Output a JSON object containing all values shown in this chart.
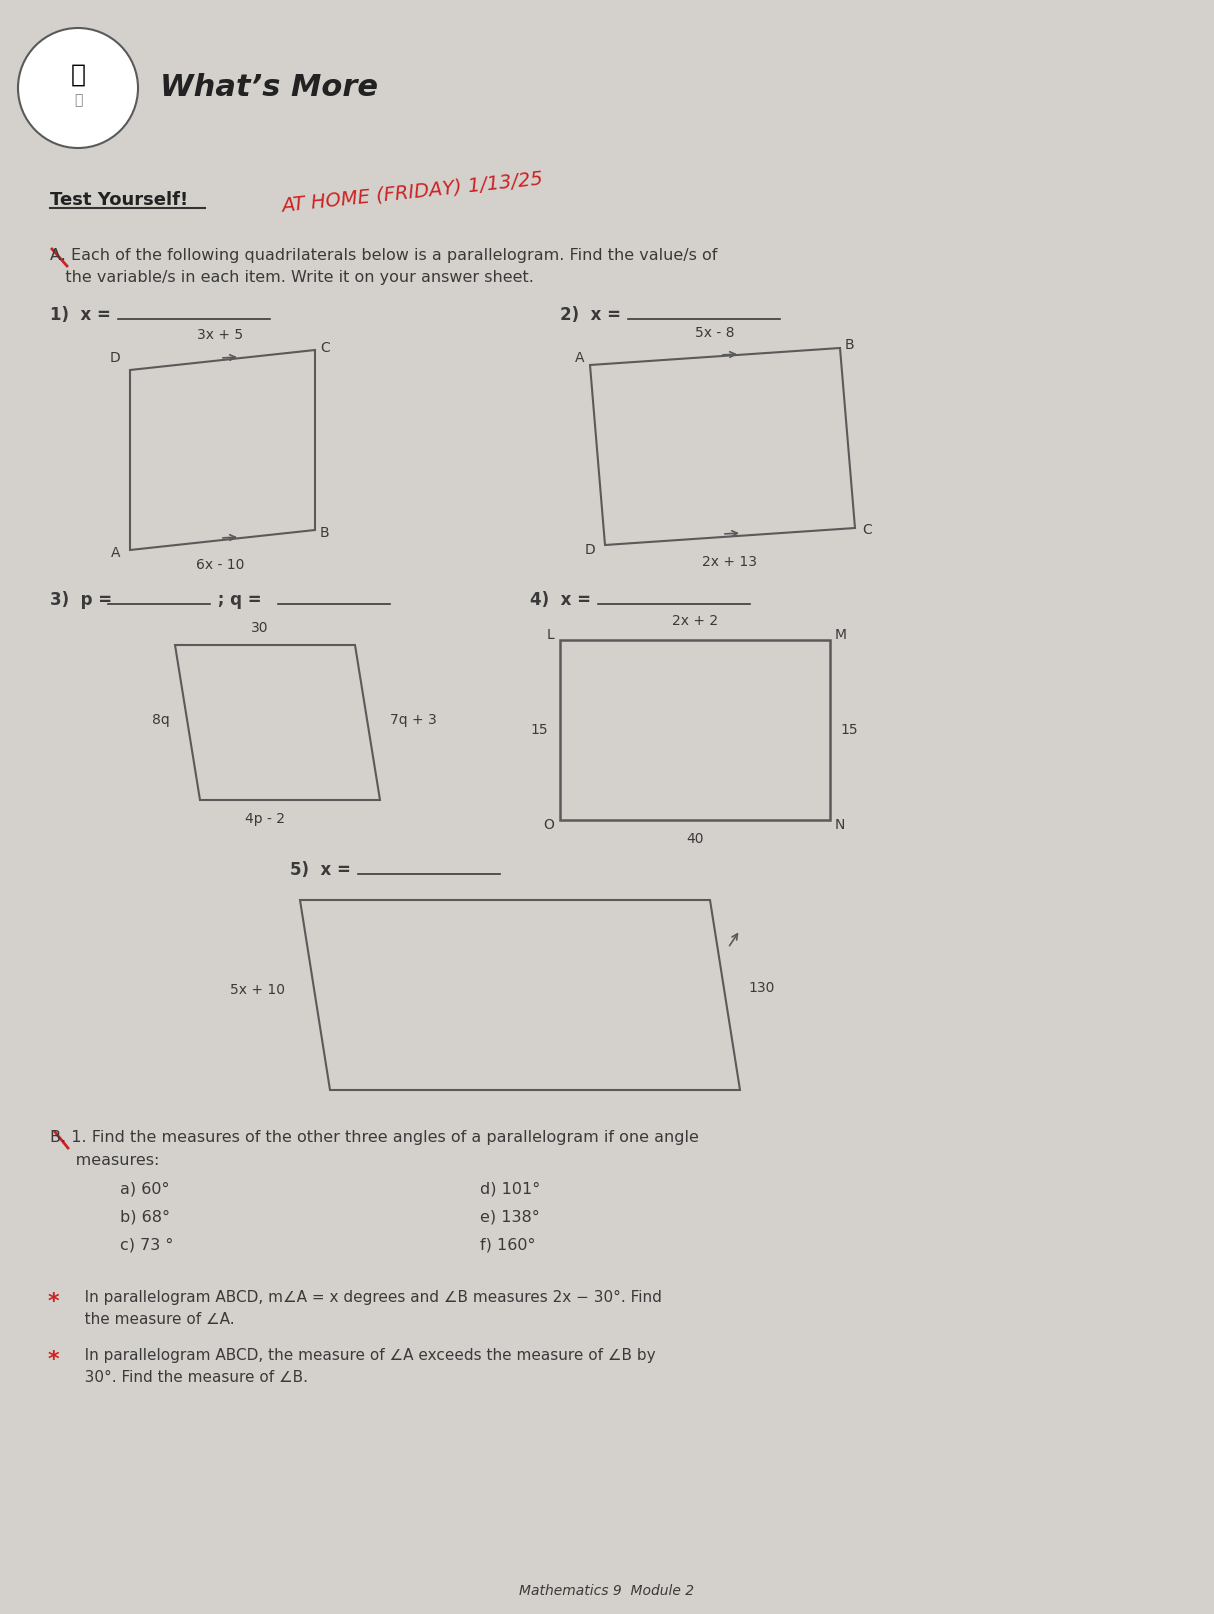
{
  "bg_color": "#d4d1cc",
  "title": "What’s More",
  "title_fontsize": 22,
  "title_fontweight": "bold",
  "section_a_text1": "A. Each of the following quadrilaterals below is a parallelogram. Find the value/s of",
  "section_a_text2": "   the variable/s in each item. Write it on your answer sheet.",
  "test_yourself": "Test Yourself!",
  "handwritten_text": "AT HOME (FRIDAY) 1/13/25",
  "section_b_intro1": "B. 1. Find the measures of the other three angles of a parallelogram if one angle",
  "section_b_intro2": "     measures:",
  "section_b_items_left": [
    "a) 60°",
    "b) 68°",
    "c) 73 °"
  ],
  "section_b_items_right": [
    "d) 101°",
    "e) 138°",
    "f) 160°"
  ],
  "section_b_2a": "   In parallelogram ABCD, m∠A = x degrees and ∠B measures 2x − 30°. Find",
  "section_b_2b": "   the measure of ∠A.",
  "section_b_3a": "   In parallelogram ABCD, the measure of ∠A exceeds the measure of ∠B by",
  "section_b_3b": "   30°. Find the measure of ∠B.",
  "footer": "Mathematics 9  Module 2",
  "item1_label": "1)  x = ",
  "item2_label": "2)  x = ",
  "item3_label": "3)  p = ",
  "item3b_label": " ; q = ",
  "item4_label": "4)  x = ",
  "item5_label": "5)  x = ",
  "text_color": "#3a3a3a",
  "line_color": "#5a5a5a",
  "red_color": "#cc2222"
}
